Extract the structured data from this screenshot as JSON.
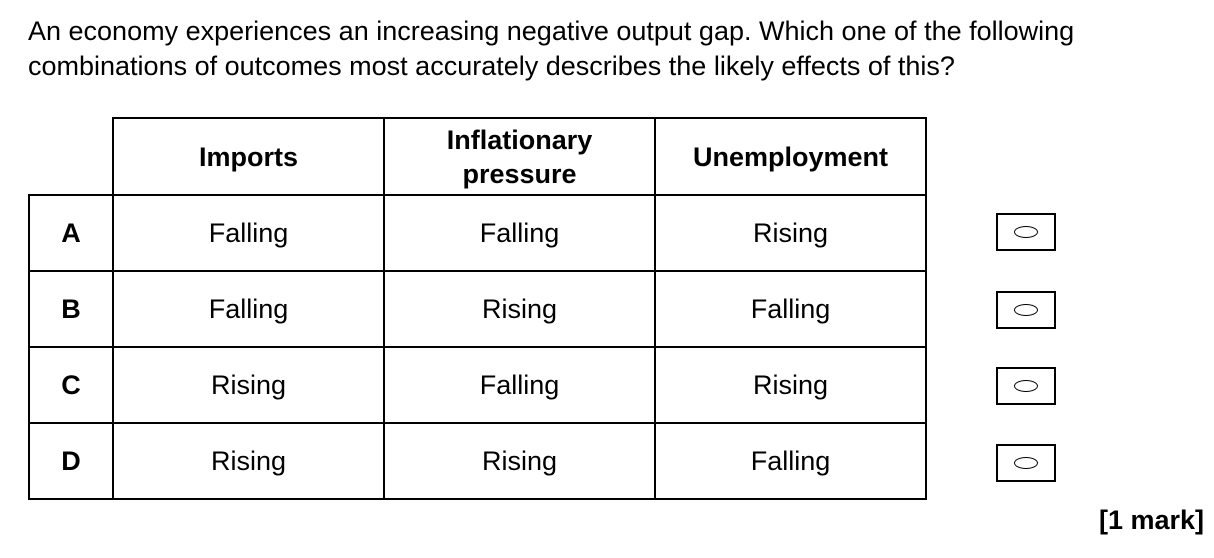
{
  "question": {
    "line1": "An economy experiences an increasing negative output gap.  Which one of the following",
    "line2": "combinations of outcomes most accurately describes the likely effects of this?"
  },
  "table": {
    "headers": {
      "imports": "Imports",
      "inflation_line1": "Inflationary",
      "inflation_line2": "pressure",
      "unemployment": "Unemployment"
    },
    "rows": [
      {
        "letter": "A",
        "imports": "Falling",
        "inflation": "Falling",
        "unemployment": "Rising"
      },
      {
        "letter": "B",
        "imports": "Falling",
        "inflation": "Rising",
        "unemployment": "Falling"
      },
      {
        "letter": "C",
        "imports": "Rising",
        "inflation": "Falling",
        "unemployment": "Rising"
      },
      {
        "letter": "D",
        "imports": "Rising",
        "inflation": "Rising",
        "unemployment": "Falling"
      }
    ]
  },
  "marks": "[1 mark]"
}
